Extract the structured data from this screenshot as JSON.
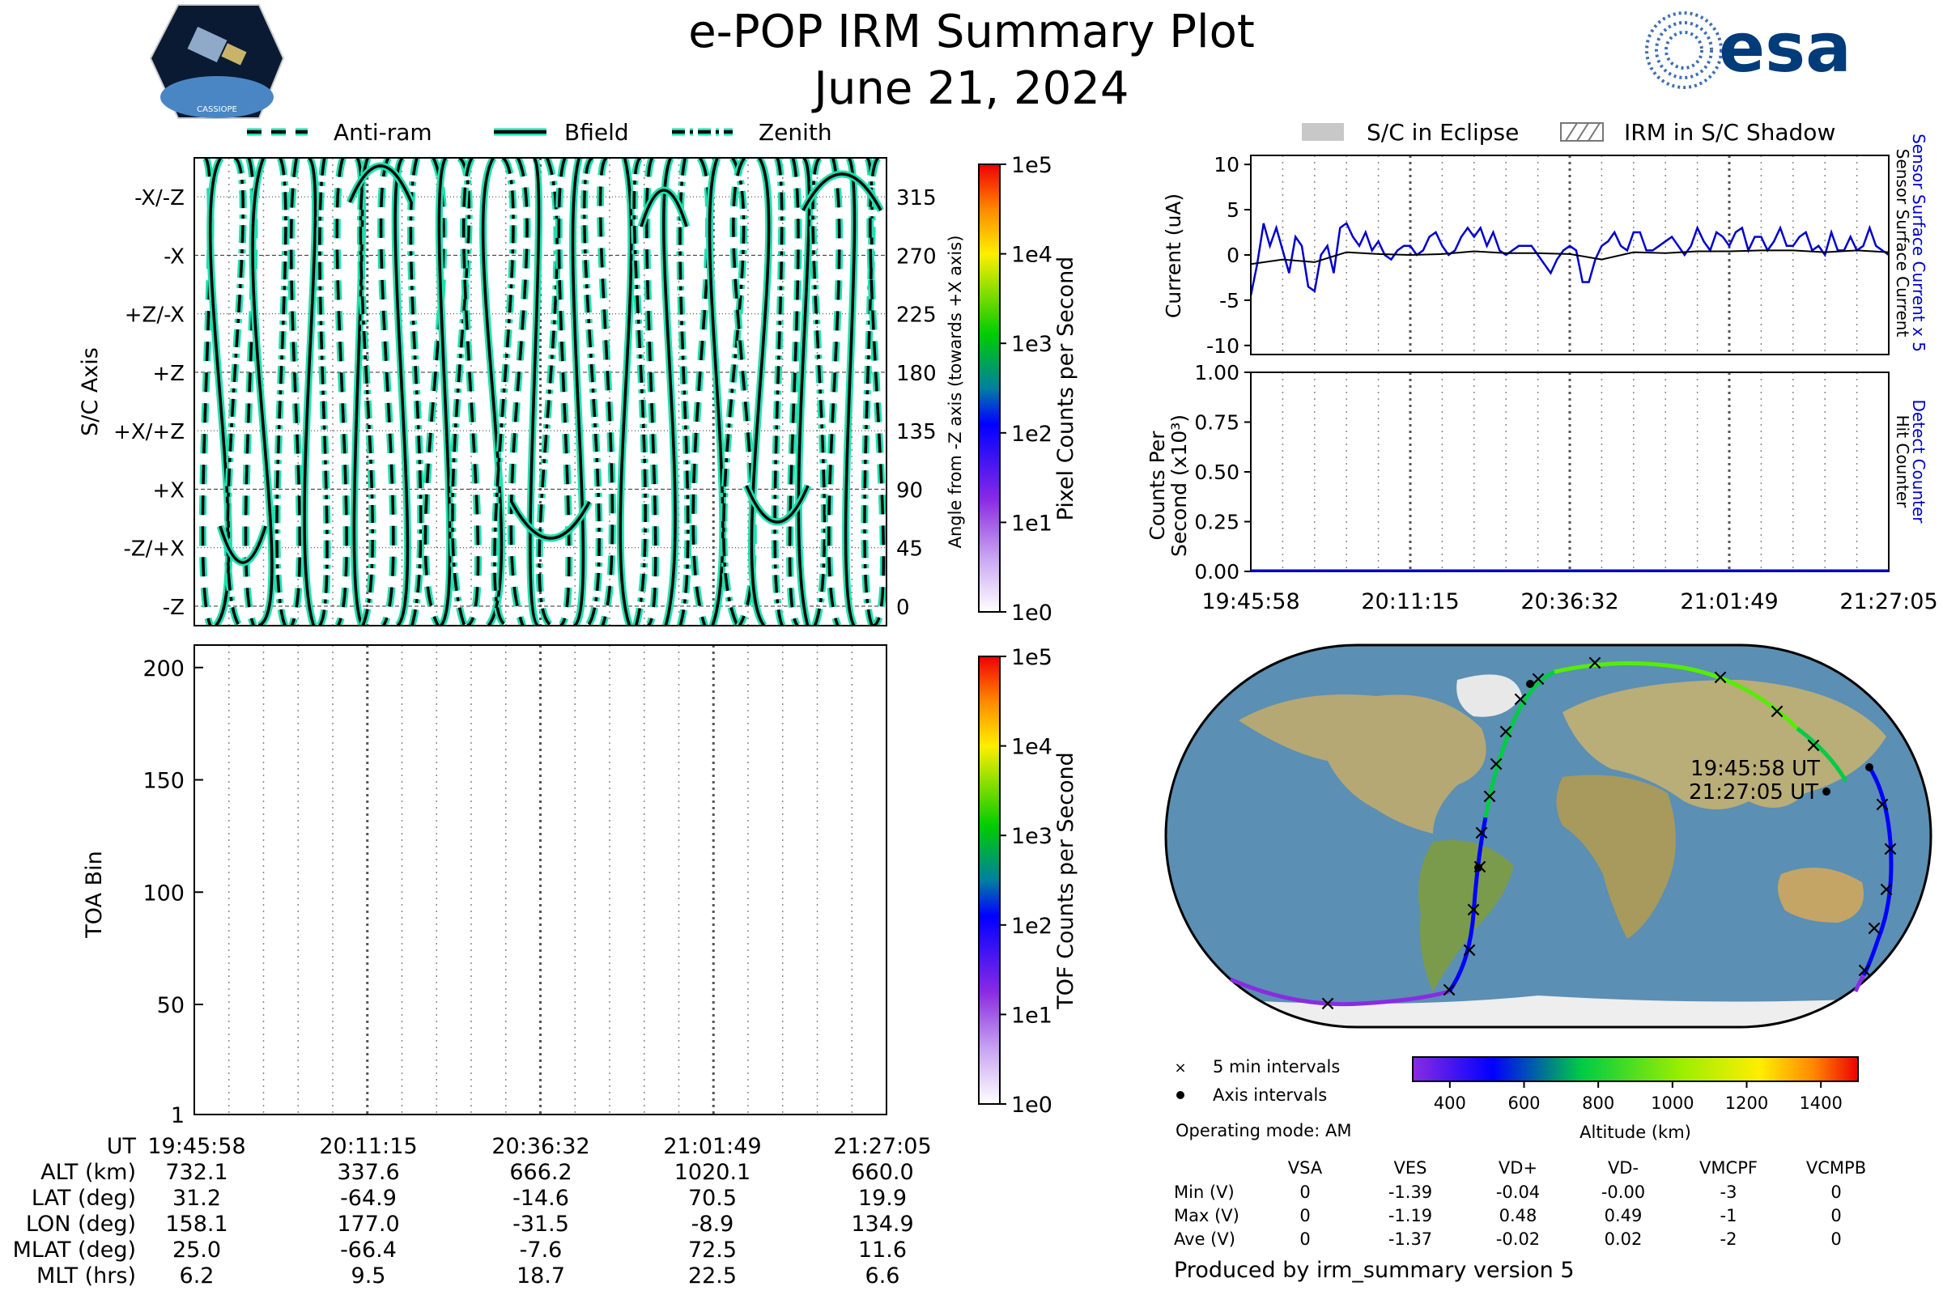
{
  "header": {
    "title": "e-POP IRM Summary Plot",
    "date": "June 21, 2024",
    "left_logo": "CASSIOPE",
    "right_logo": "esa"
  },
  "colors": {
    "accent_teal": "#1ee0b0",
    "sensor_blue": "#0000cc",
    "map_ocean": "#5b8fb4",
    "map_land": "#b9b07a"
  },
  "legend_top_left": {
    "items": [
      "Anti-ram",
      "Bfield",
      "Zenith"
    ]
  },
  "legend_top_right": {
    "items": [
      "S/C in Eclipse",
      "IRM in S/C Shadow"
    ]
  },
  "time_ticks": [
    "19:45:58",
    "20:11:15",
    "20:36:32",
    "21:01:49",
    "21:27:05"
  ],
  "chart_data": [
    {
      "type": "line",
      "name": "pixel-angle-panel",
      "ylabel": "S/C Axis",
      "ylabel_right": "Angle from -Z axis (towards +X axis)",
      "y_category_labels": [
        "-X/-Z",
        "-X",
        "+Z/-X",
        "+Z",
        "+X/+Z",
        "+X",
        "-Z/+X",
        "-Z"
      ],
      "y_right_ticks": [
        "315",
        "270",
        "225",
        "180",
        "135",
        "90",
        "45",
        "0"
      ],
      "ylim": [
        -15,
        345
      ],
      "series": [
        {
          "name": "Anti-ram",
          "style": "dashed"
        },
        {
          "name": "Bfield",
          "style": "solid"
        },
        {
          "name": "Zenith",
          "style": "dash-dot"
        }
      ],
      "colorbar": {
        "label": "Pixel Counts per Second",
        "ticks": [
          "1e5",
          "1e4",
          "1e3",
          "1e2",
          "1e1",
          "1e0"
        ]
      }
    },
    {
      "type": "heatmap",
      "name": "toa-panel",
      "ylabel": "TOA Bin",
      "y_ticks": [
        "200",
        "150",
        "100",
        "50",
        "1"
      ],
      "ylim": [
        1,
        210
      ],
      "colorbar": {
        "label": "TOF Counts per Second",
        "ticks": [
          "1e5",
          "1e4",
          "1e3",
          "1e2",
          "1e1",
          "1e0"
        ]
      }
    },
    {
      "type": "line",
      "name": "current-panel",
      "ylabel": "Current (uA)",
      "ylim": [
        -11,
        11
      ],
      "y_ticks": [
        "10",
        "5",
        "0",
        "-5",
        "-10"
      ],
      "right_label_1": "Sensor Surface Current x 5",
      "right_label_2": "Sensor Surface Current",
      "series": [
        {
          "name": "Sensor Surface Current x 5",
          "color": "#0000cc",
          "x": [
            0,
            0.01,
            0.02,
            0.03,
            0.04,
            0.05,
            0.06,
            0.07,
            0.08,
            0.09,
            0.1,
            0.11,
            0.12,
            0.13,
            0.14,
            0.15,
            0.16,
            0.17,
            0.18,
            0.19,
            0.2,
            0.21,
            0.22,
            0.23,
            0.24,
            0.25,
            0.26,
            0.27,
            0.28,
            0.29,
            0.3,
            0.31,
            0.32,
            0.33,
            0.34,
            0.35,
            0.36,
            0.37,
            0.38,
            0.39,
            0.4,
            0.41,
            0.42,
            0.43,
            0.44,
            0.45,
            0.46,
            0.47,
            0.48,
            0.49,
            0.5,
            0.51,
            0.52,
            0.53,
            0.54,
            0.55,
            0.56,
            0.57,
            0.58,
            0.59,
            0.6,
            0.61,
            0.62,
            0.63,
            0.64,
            0.65,
            0.66,
            0.67,
            0.68,
            0.69,
            0.7,
            0.71,
            0.72,
            0.73,
            0.74,
            0.75,
            0.76,
            0.77,
            0.78,
            0.79,
            0.8,
            0.81,
            0.82,
            0.83,
            0.84,
            0.85,
            0.86,
            0.87,
            0.88,
            0.89,
            0.9,
            0.91,
            0.92,
            0.93,
            0.94,
            0.95,
            0.96,
            0.97,
            0.98,
            0.99,
            1.0
          ],
          "values": [
            -4.5,
            -1,
            3.5,
            1,
            3,
            0.5,
            -2,
            2,
            1,
            -3.5,
            -4,
            0,
            1,
            -2,
            3,
            3.5,
            2,
            1,
            2.5,
            0.5,
            1.5,
            0,
            -0.5,
            0.5,
            1,
            1,
            0,
            0.5,
            2,
            2.5,
            1,
            0,
            0.5,
            2,
            3,
            2,
            3,
            1,
            2.5,
            0.5,
            0,
            0.5,
            1,
            1,
            1,
            0,
            -1,
            -2,
            -0.5,
            0.5,
            1,
            0.5,
            -3,
            -3,
            -0.5,
            1,
            1.5,
            2.5,
            1,
            0.5,
            2.5,
            2.5,
            0.5,
            0.5,
            1,
            1.5,
            2,
            1,
            0,
            1,
            3,
            1.5,
            0.5,
            2.5,
            2,
            1,
            2.5,
            3,
            0.5,
            2,
            2,
            0.5,
            1.5,
            3,
            1,
            1,
            2,
            2.5,
            0.5,
            1,
            0,
            2.5,
            0.5,
            0.5,
            2,
            0.5,
            1,
            3,
            1,
            0.5,
            0
          ]
        },
        {
          "name": "Sensor Surface Current",
          "color": "#000000",
          "x": [
            0,
            0.05,
            0.1,
            0.15,
            0.2,
            0.25,
            0.3,
            0.35,
            0.4,
            0.45,
            0.5,
            0.55,
            0.6,
            0.65,
            0.7,
            0.75,
            0.8,
            0.85,
            0.9,
            0.95,
            1.0
          ],
          "values": [
            -1,
            -0.5,
            -0.8,
            0.3,
            0.1,
            0,
            0.1,
            0.4,
            0.2,
            0.2,
            0.1,
            -0.5,
            0.3,
            0.2,
            0.4,
            0.4,
            0.5,
            0.5,
            0.3,
            0.5,
            0.3
          ]
        }
      ]
    },
    {
      "type": "line",
      "name": "counts-panel",
      "ylabel": "Counts Per Second (x10³)",
      "ylim": [
        0,
        1.0
      ],
      "y_ticks": [
        "1.00",
        "0.75",
        "0.50",
        "0.25",
        "0.00"
      ],
      "right_label_1": "Detect Counter",
      "right_label_2": "Hit Counter",
      "series": [
        {
          "name": "Detect Counter",
          "color": "#0000cc",
          "x": [
            0,
            1
          ],
          "values": [
            0,
            0
          ]
        }
      ]
    }
  ],
  "map": {
    "start_label": "19:45:58 UT",
    "end_label": "21:27:05 UT",
    "legend": [
      "5 min intervals",
      "Axis intervals"
    ],
    "altitude_label": "Altitude (km)",
    "altitude_ticks": [
      "400",
      "600",
      "800",
      "1000",
      "1200",
      "1400"
    ]
  },
  "operating_mode": "Operating mode: AM",
  "voltage_table": {
    "headers": [
      "",
      "VSA",
      "VES",
      "VD+",
      "VD-",
      "VMCPF",
      "VCMPB"
    ],
    "rows": [
      [
        "Min (V)",
        "0",
        "-1.39",
        "-0.04",
        "-0.00",
        "-3",
        "0"
      ],
      [
        "Max (V)",
        "0",
        "-1.19",
        "0.48",
        "0.49",
        "-1",
        "0"
      ],
      [
        "Ave (V)",
        "0",
        "-1.37",
        "-0.02",
        "0.02",
        "-2",
        "0"
      ]
    ]
  },
  "ephemeris": {
    "labels": [
      "UT",
      "ALT (km)",
      "LAT (deg)",
      "LON (deg)",
      "MLAT (deg)",
      "MLT (hrs)"
    ],
    "columns": [
      [
        "19:45:58",
        "732.1",
        "31.2",
        "158.1",
        "25.0",
        "6.2"
      ],
      [
        "20:11:15",
        "337.6",
        "-64.9",
        "177.0",
        "-66.4",
        "9.5"
      ],
      [
        "20:36:32",
        "666.2",
        "-14.6",
        "-31.5",
        "-7.6",
        "18.7"
      ],
      [
        "21:01:49",
        "1020.1",
        "70.5",
        "-8.9",
        "72.5",
        "22.5"
      ],
      [
        "21:27:05",
        "660.0",
        "19.9",
        "134.9",
        "11.6",
        "6.6"
      ]
    ]
  },
  "footer": "Produced by irm_summary version 5"
}
